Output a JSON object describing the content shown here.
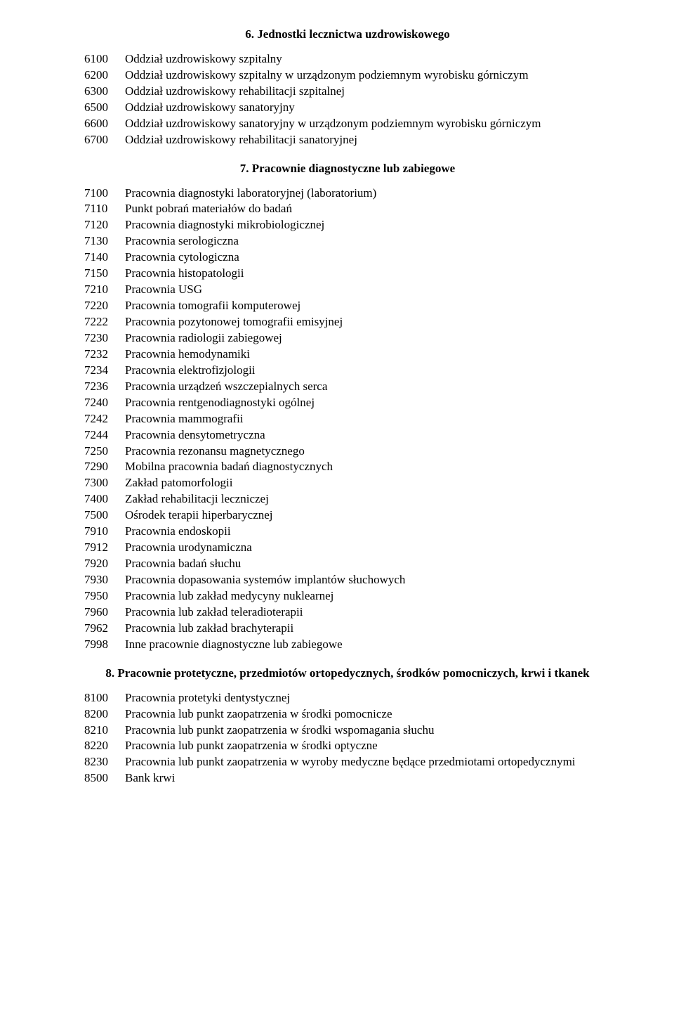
{
  "sections": [
    {
      "heading": "6. Jednostki lecznictwa uzdrowiskowego",
      "items": [
        {
          "code": "6100",
          "label": "Oddział uzdrowiskowy szpitalny"
        },
        {
          "code": "6200",
          "label": "Oddział uzdrowiskowy szpitalny w urządzonym podziemnym wyrobisku górniczym"
        },
        {
          "code": "6300",
          "label": "Oddział uzdrowiskowy rehabilitacji szpitalnej"
        },
        {
          "code": "6500",
          "label": "Oddział uzdrowiskowy sanatoryjny"
        },
        {
          "code": "6600",
          "label": "Oddział uzdrowiskowy sanatoryjny w urządzonym podziemnym wyrobisku górniczym"
        },
        {
          "code": "6700",
          "label": "Oddział uzdrowiskowy rehabilitacji sanatoryjnej"
        }
      ]
    },
    {
      "heading": "7. Pracownie diagnostyczne lub zabiegowe",
      "items": [
        {
          "code": "7100",
          "label": "Pracownia diagnostyki laboratoryjnej (laboratorium)"
        },
        {
          "code": "7110",
          "label": "Punkt pobrań materiałów do badań"
        },
        {
          "code": "7120",
          "label": "Pracownia diagnostyki mikrobiologicznej"
        },
        {
          "code": "7130",
          "label": "Pracownia serologiczna"
        },
        {
          "code": "7140",
          "label": "Pracownia cytologiczna"
        },
        {
          "code": "7150",
          "label": "Pracownia histopatologii"
        },
        {
          "code": "7210",
          "label": "Pracownia USG"
        },
        {
          "code": "7220",
          "label": "Pracownia tomografii komputerowej"
        },
        {
          "code": "7222",
          "label": "Pracownia pozytonowej tomografii emisyjnej"
        },
        {
          "code": "7230",
          "label": "Pracownia radiologii zabiegowej"
        },
        {
          "code": "7232",
          "label": "Pracownia hemodynamiki"
        },
        {
          "code": "7234",
          "label": "Pracownia elektrofizjologii"
        },
        {
          "code": "7236",
          "label": "Pracownia urządzeń wszczepialnych serca"
        },
        {
          "code": "7240",
          "label": "Pracownia rentgenodiagnostyki ogólnej"
        },
        {
          "code": "7242",
          "label": "Pracownia mammografii"
        },
        {
          "code": "7244",
          "label": "Pracownia densytometryczna"
        },
        {
          "code": "7250",
          "label": "Pracownia rezonansu magnetycznego"
        },
        {
          "code": "7290",
          "label": "Mobilna pracownia badań diagnostycznych"
        },
        {
          "code": "7300",
          "label": "Zakład patomorfologii"
        },
        {
          "code": "7400",
          "label": "Zakład rehabilitacji leczniczej"
        },
        {
          "code": "7500",
          "label": "Ośrodek terapii hiperbarycznej"
        },
        {
          "code": "7910",
          "label": "Pracownia endoskopii"
        },
        {
          "code": "7912",
          "label": "Pracownia urodynamiczna"
        },
        {
          "code": "7920",
          "label": "Pracownia badań słuchu"
        },
        {
          "code": "7930",
          "label": "Pracownia dopasowania systemów implantów słuchowych"
        },
        {
          "code": "7950",
          "label": "Pracownia lub zakład medycyny nuklearnej"
        },
        {
          "code": "7960",
          "label": "Pracownia lub zakład teleradioterapii"
        },
        {
          "code": "7962",
          "label": "Pracownia lub zakład brachyterapii"
        },
        {
          "code": "7998",
          "label": "Inne pracownie diagnostyczne lub zabiegowe"
        }
      ]
    },
    {
      "heading": "8. Pracownie protetyczne, przedmiotów ortopedycznych, środków pomocniczych, krwi i tkanek",
      "items": [
        {
          "code": "8100",
          "label": "Pracownia protetyki dentystycznej"
        },
        {
          "code": "8200",
          "label": "Pracownia lub punkt zaopatrzenia w środki pomocnicze"
        },
        {
          "code": "8210",
          "label": "Pracownia lub punkt zaopatrzenia w środki wspomagania słuchu"
        },
        {
          "code": "8220",
          "label": "Pracownia lub punkt zaopatrzenia w środki optyczne"
        },
        {
          "code": "8230",
          "label": "Pracownia lub punkt zaopatrzenia w wyroby medyczne będące przedmiotami ortopedycznymi",
          "justify": true
        },
        {
          "code": "8500",
          "label": "Bank krwi"
        }
      ]
    }
  ]
}
